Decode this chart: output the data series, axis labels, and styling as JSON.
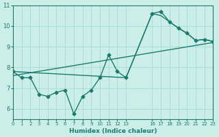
{
  "background_color": "#cceee8",
  "grid_color": "#aadddd",
  "line_color": "#1a7a6e",
  "xlabel": "Humidex (Indice chaleur)",
  "xlim": [
    0,
    23
  ],
  "ylim": [
    5.5,
    11
  ],
  "yticks": [
    6,
    7,
    8,
    9,
    10,
    11
  ],
  "xticks": [
    0,
    1,
    2,
    3,
    4,
    5,
    6,
    7,
    8,
    9,
    10,
    11,
    12,
    13,
    16,
    17,
    18,
    19,
    20,
    21,
    22,
    23
  ],
  "series1_x": [
    0,
    1,
    2,
    3,
    4,
    5,
    6,
    7,
    8,
    9,
    10,
    11,
    12,
    13,
    16,
    17,
    18,
    19,
    20,
    21,
    22,
    23
  ],
  "series1_y": [
    7.8,
    7.5,
    7.5,
    6.7,
    6.6,
    6.8,
    6.9,
    5.75,
    6.6,
    6.9,
    7.5,
    8.6,
    7.8,
    7.5,
    10.6,
    10.7,
    10.2,
    9.9,
    9.65,
    9.3,
    9.35,
    9.25
  ],
  "series2_x": [
    0,
    13,
    16,
    17,
    19,
    20,
    21,
    22,
    23
  ],
  "series2_y": [
    7.8,
    7.5,
    10.6,
    10.5,
    9.9,
    9.65,
    9.3,
    9.35,
    9.25
  ],
  "series3_x": [
    0,
    23
  ],
  "series3_y": [
    7.6,
    9.2
  ]
}
